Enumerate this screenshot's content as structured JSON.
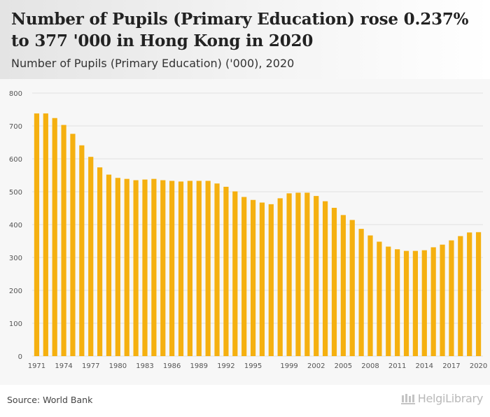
{
  "header": {
    "title": "Number of Pupils (Primary Education) rose 0.237% to 377 '000 in Hong Kong in 2020",
    "subtitle": "Number of Pupils (Primary Education) ('000), 2020"
  },
  "footer": {
    "source": "Source: World Bank",
    "logo_text": "HelgiLibrary"
  },
  "colors": {
    "bar": "#f5b010",
    "grid": "#e1e1e1",
    "axis_text": "#555555",
    "plot_background": "#f7f7f7"
  },
  "chart_data": {
    "type": "bar",
    "title": "Number of Pupils (Primary Education) ('000), 2020",
    "xlabel": "",
    "ylabel": "",
    "ylim": [
      0,
      800
    ],
    "yticks": [
      0,
      100,
      200,
      300,
      400,
      500,
      600,
      700,
      800
    ],
    "xtick_labels": [
      "1971",
      "1974",
      "1977",
      "1980",
      "1983",
      "1986",
      "1989",
      "1992",
      "1995",
      "1999",
      "2002",
      "2005",
      "2008",
      "2011",
      "2014",
      "2017",
      "2020"
    ],
    "grid": true,
    "categories": [
      "1971",
      "1972",
      "1973",
      "1974",
      "1975",
      "1976",
      "1977",
      "1978",
      "1979",
      "1980",
      "1981",
      "1982",
      "1983",
      "1984",
      "1985",
      "1986",
      "1987",
      "1988",
      "1989",
      "1990",
      "1991",
      "1992",
      "1993",
      "1994",
      "1995",
      "1996",
      "1997",
      "1998",
      "1999",
      "2000",
      "2001",
      "2002",
      "2003",
      "2004",
      "2005",
      "2006",
      "2007",
      "2008",
      "2009",
      "2010",
      "2011",
      "2012",
      "2013",
      "2014",
      "2015",
      "2016",
      "2017",
      "2018",
      "2019",
      "2020"
    ],
    "values": [
      738,
      738,
      724,
      703,
      676,
      641,
      606,
      574,
      552,
      542,
      539,
      535,
      537,
      539,
      535,
      533,
      531,
      533,
      533,
      533,
      525,
      515,
      501,
      484,
      475,
      467,
      462,
      480,
      495,
      497,
      497,
      487,
      471,
      451,
      429,
      414,
      387,
      367,
      348,
      333,
      325,
      320,
      320,
      322,
      331,
      339,
      352,
      365,
      376,
      377
    ]
  }
}
